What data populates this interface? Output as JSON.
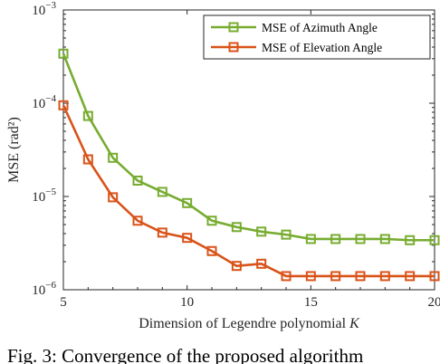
{
  "chart_data": {
    "type": "line",
    "xlabel": "Dimension of Legendre polynomial",
    "xlabel_var": "K",
    "ylabel": "MSE (rad²)",
    "xlim": [
      5,
      20
    ],
    "ylim": [
      1e-06,
      0.001
    ],
    "yscale": "log",
    "xticks": [
      5,
      10,
      15,
      20
    ],
    "yticks": [
      {
        "value": 1e-06,
        "base": "10",
        "exp": "−6"
      },
      {
        "value": 1e-05,
        "base": "10",
        "exp": "−5"
      },
      {
        "value": 0.0001,
        "base": "10",
        "exp": "−4"
      },
      {
        "value": 0.001,
        "base": "10",
        "exp": "−3"
      }
    ],
    "grid": false,
    "legend_position": "top-right",
    "x": [
      5,
      6,
      7,
      8,
      9,
      10,
      11,
      12,
      13,
      14,
      15,
      16,
      17,
      18,
      19,
      20
    ],
    "series": [
      {
        "name": "MSE of Azimuth Angle",
        "color": "#77ac30",
        "marker": "square",
        "values": [
          0.00034,
          7.3e-05,
          2.6e-05,
          1.48e-05,
          1.12e-05,
          8.5e-06,
          5.5e-06,
          4.7e-06,
          4.2e-06,
          3.9e-06,
          3.5e-06,
          3.5e-06,
          3.5e-06,
          3.5e-06,
          3.4e-06,
          3.4e-06
        ]
      },
      {
        "name": "MSE of Elevation Angle",
        "color": "#d95319",
        "marker": "square",
        "values": [
          9.5e-05,
          2.5e-05,
          9.8e-06,
          5.5e-06,
          4.1e-06,
          3.6e-06,
          2.6e-06,
          1.8e-06,
          1.9e-06,
          1.4e-06,
          1.4e-06,
          1.4e-06,
          1.4e-06,
          1.4e-06,
          1.4e-06,
          1.4e-06
        ]
      }
    ]
  },
  "caption": "Fig. 3: Convergence of the proposed algorithm"
}
